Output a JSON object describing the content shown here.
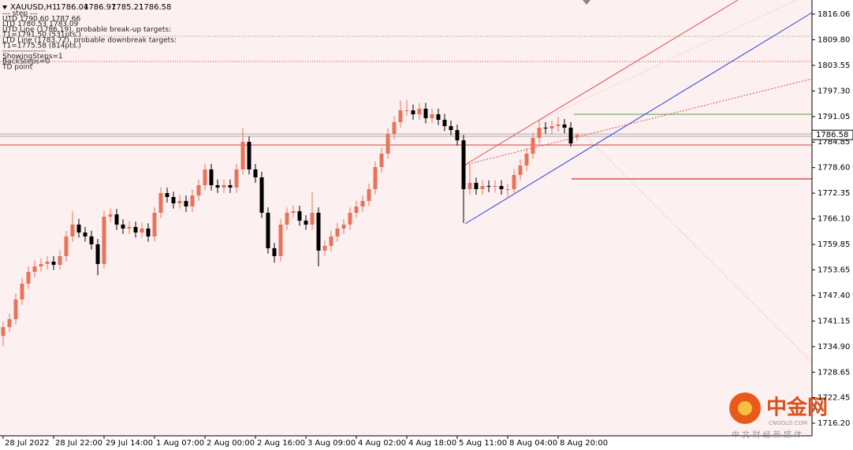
{
  "chart_data": {
    "type": "candlestick",
    "symbol": "XAUUSD,H1",
    "annotations": [
      "--- step ---",
      "UTD 1790.60  1787.66",
      "LTD 1780.53  1783.09",
      "UTD Line (1786.19), probable break-up targets:",
      "T1=1791.50 (531pts.)",
      "LTD Line (1783.72), probable downbreak targets:",
      "T1=1775.58 (814pts.)",
      "-----------------",
      "ShowingSteps=1",
      "BackSteps=0",
      "TD point"
    ],
    "watermark": {
      "logo": "中金网",
      "site": "CNGOLD.COM",
      "slogan": "中 文 财 经 新 媒 体"
    },
    "up_color": "#e8735a",
    "down_color": "#000000",
    "open": [
      1737.5,
      1739.67,
      1741.6,
      1746.41,
      1750.26,
      1753.14,
      1754.49,
      1755.07,
      1755.64,
      1754.87,
      1756.99,
      1761.8,
      1764.69,
      1762.76,
      1761.8,
      1759.88,
      1755.07,
      1766.61,
      1767.19,
      1764.69,
      1763.72,
      1764.11,
      1762.76,
      1763.72,
      1761.8,
      1767.57,
      1772.38,
      1771.42,
      1769.88,
      1770.46,
      1769.11,
      1771.8,
      1774.31,
      1778.15,
      1774.31,
      1773.73,
      1774.31,
      1773.73,
      1778.15,
      1784.89,
      1778.15,
      1776.23,
      1767.57,
      1758.91,
      1756.99,
      1764.69,
      1767.57,
      1767.96,
      1765.65,
      1764.69,
      1767.57,
      1758.34,
      1759.49,
      1761.8,
      1763.72,
      1764.69,
      1767.57,
      1769.11,
      1770.46,
      1773.34,
      1778.73,
      1782,
      1786.81,
      1789.7,
      1792.58,
      1792.58,
      1791.62,
      1792.97,
      1790.66,
      1791.62,
      1790.28,
      1788.74,
      1787.77,
      1785.27,
      1773.34,
      1774.88,
      1773.34,
      1774.11,
      1773.92,
      1774.11,
      1773.34,
      1773.34,
      1776.81,
      1779.12,
      1782,
      1785.85,
      1788.35,
      1788.16,
      1788.74,
      1789.12,
      1788.35,
      1786.04
    ],
    "high": [
      1741,
      1743,
      1747.8,
      1751.6,
      1754.5,
      1755.9,
      1756.5,
      1757,
      1757,
      1758.4,
      1763.2,
      1767.9,
      1766.1,
      1764.1,
      1763.2,
      1761.2,
      1768,
      1768.6,
      1768.5,
      1766,
      1765.5,
      1765.4,
      1765.1,
      1765,
      1769,
      1773.8,
      1773.7,
      1772.7,
      1771.9,
      1771.8,
      1773.2,
      1775.7,
      1779.5,
      1779.5,
      1775.7,
      1775.7,
      1775.7,
      1779.5,
      1788.3,
      1786.2,
      1779.5,
      1777.6,
      1768.9,
      1760.2,
      1766,
      1768.9,
      1769.3,
      1769.3,
      1767,
      1772.6,
      1768.9,
      1760.8,
      1763.2,
      1765.1,
      1766,
      1768.9,
      1770.5,
      1771.8,
      1774.7,
      1780.1,
      1783.4,
      1788.2,
      1791.1,
      1795,
      1795.1,
      1794,
      1794.4,
      1794.4,
      1793,
      1793,
      1791.7,
      1790.1,
      1789.1,
      1786.6,
      1779.5,
      1776.2,
      1775.5,
      1775.5,
      1775.5,
      1775.5,
      1774.7,
      1778.2,
      1780.5,
      1783.4,
      1787.2,
      1790.1,
      1789.7,
      1790.1,
      1791,
      1790.5,
      1789.7,
      1786.97
    ],
    "low": [
      1735,
      1738.4,
      1740.3,
      1745.1,
      1749,
      1751.8,
      1753.2,
      1753.8,
      1753.6,
      1753.6,
      1755.7,
      1760.5,
      1761.5,
      1760.5,
      1758.6,
      1752.3,
      1754,
      1765.3,
      1763.4,
      1762.4,
      1762.4,
      1761.5,
      1761.5,
      1760.5,
      1760.5,
      1766.3,
      1770.1,
      1768.6,
      1768.6,
      1767.8,
      1767.8,
      1770.5,
      1773,
      1773,
      1772.4,
      1772.4,
      1772.4,
      1772.4,
      1776.9,
      1776.9,
      1774.9,
      1766.3,
      1757.6,
      1755.4,
      1755.7,
      1763.4,
      1766.3,
      1764.4,
      1763.4,
      1763.4,
      1754.5,
      1757,
      1758.2,
      1760.5,
      1762.4,
      1763.4,
      1766.3,
      1767.8,
      1769.2,
      1772,
      1777.4,
      1780.7,
      1785.5,
      1788.4,
      1791.3,
      1790.3,
      1790.3,
      1789.4,
      1789.4,
      1789,
      1787.5,
      1786.5,
      1784,
      1765.1,
      1772,
      1772,
      1772,
      1772.6,
      1772.6,
      1772,
      1771.4,
      1772,
      1775.5,
      1777.8,
      1780.7,
      1784.5,
      1786.9,
      1786.9,
      1787.4,
      1787,
      1783.7,
      1785.21
    ],
    "close": [
      1739.67,
      1741.6,
      1746.41,
      1750.26,
      1753.14,
      1754.49,
      1755.07,
      1755.64,
      1754.87,
      1756.99,
      1761.8,
      1764.69,
      1762.76,
      1761.8,
      1759.88,
      1755.07,
      1766.61,
      1767.19,
      1764.69,
      1763.72,
      1764.11,
      1762.76,
      1763.72,
      1761.8,
      1767.57,
      1772.38,
      1771.42,
      1769.88,
      1770.46,
      1769.11,
      1771.8,
      1774.31,
      1778.15,
      1774.31,
      1773.73,
      1774.31,
      1773.73,
      1778.15,
      1784.89,
      1778.15,
      1776.23,
      1767.57,
      1758.91,
      1756.99,
      1764.69,
      1767.57,
      1767.96,
      1765.65,
      1764.69,
      1767.57,
      1758.34,
      1759.49,
      1761.8,
      1763.72,
      1764.69,
      1767.57,
      1769.11,
      1770.46,
      1773.34,
      1778.73,
      1782,
      1786.81,
      1789.7,
      1792.58,
      1792.58,
      1791.62,
      1792.97,
      1790.66,
      1791.62,
      1790.28,
      1788.74,
      1787.77,
      1785.27,
      1773.34,
      1774.88,
      1773.34,
      1774.11,
      1773.92,
      1774.11,
      1773.34,
      1773.34,
      1776.81,
      1779.12,
      1782,
      1785.85,
      1788.35,
      1788.16,
      1788.74,
      1789.12,
      1788.35,
      1784.5,
      1786.58
    ],
    "xlim": [
      -0.5,
      128.25
    ],
    "xticks": [
      {
        "value": 0,
        "label": "28 Jul 2022"
      },
      {
        "value": 8,
        "label": "28 Jul 22:00"
      },
      {
        "value": 16,
        "label": "29 Jul 14:00"
      },
      {
        "value": 24,
        "label": "1 Aug 07:00"
      },
      {
        "value": 32,
        "label": "2 Aug 00:00"
      },
      {
        "value": 40,
        "label": "2 Aug 16:00"
      },
      {
        "value": 48,
        "label": "3 Aug 09:00"
      },
      {
        "value": 56,
        "label": "4 Aug 02:00"
      },
      {
        "value": 64,
        "label": "4 Aug 18:00"
      },
      {
        "value": 72,
        "label": "5 Aug 11:00"
      },
      {
        "value": 80,
        "label": "8 Aug 04:00"
      },
      {
        "value": 88,
        "label": "8 Aug 20:00"
      }
    ],
    "ylim": [
      1713.12,
      1819.52
    ],
    "yticks": [
      1816.06,
      {
        "value": 1809.8,
        "label": "1809.80"
      },
      1803.55,
      {
        "value": 1797.3,
        "label": "1797.30"
      },
      1791.05,
      1784.85,
      {
        "value": 1778.6,
        "label": "1778.60"
      },
      1772.35,
      {
        "value": 1766.1,
        "label": "1766.10"
      },
      1759.85,
      1753.65,
      {
        "value": 1747.4,
        "label": "1747.40"
      },
      1741.15,
      {
        "value": 1734.9,
        "label": "1734.90"
      },
      1728.65,
      1722.45,
      {
        "value": 1716.2,
        "label": "1716.20"
      }
    ]
  }
}
